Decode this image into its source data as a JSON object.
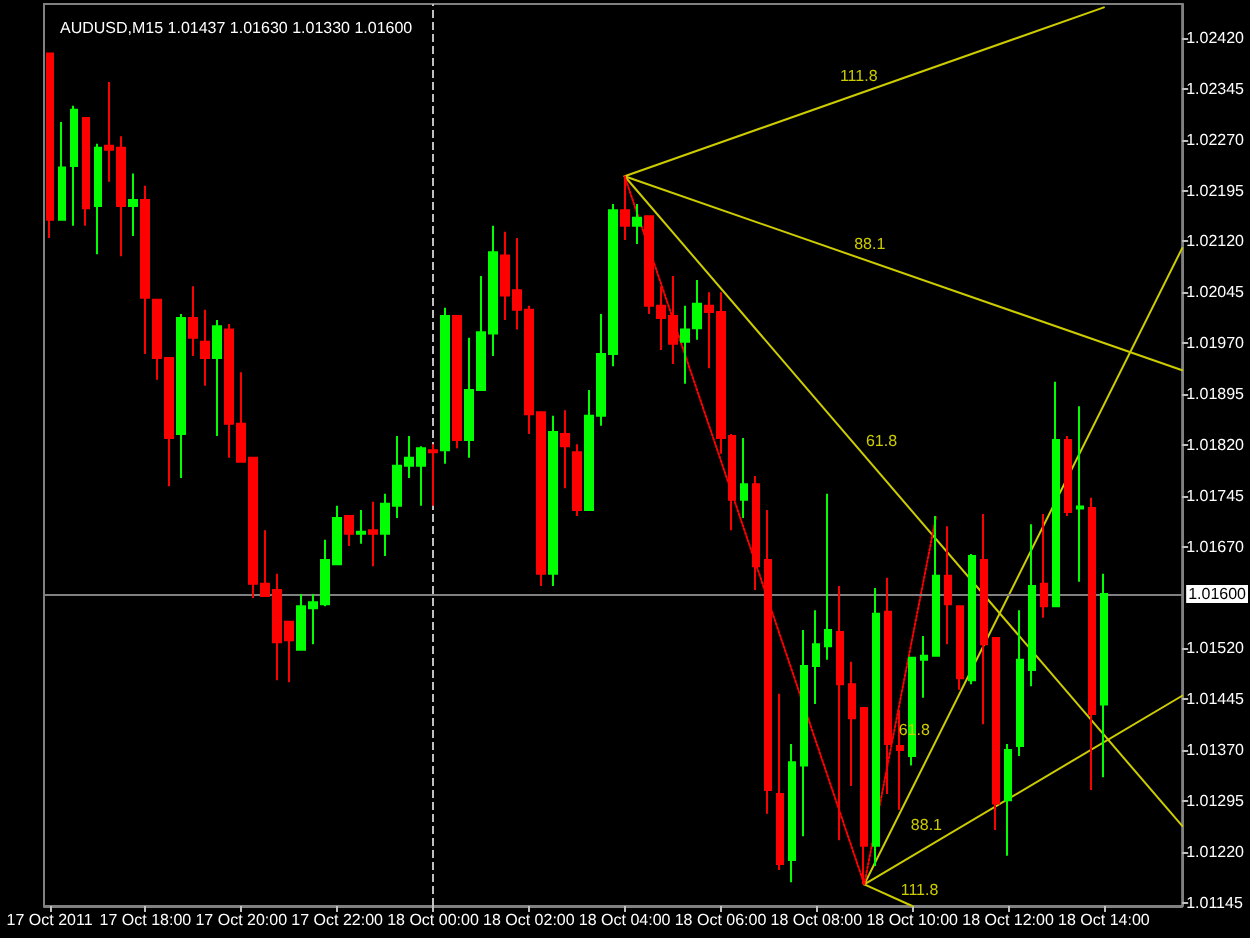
{
  "chart_data": {
    "type": "candlestick",
    "title": "AUDUSD,M15 1.01437 1.01630 1.01330 1.01600",
    "x": [
      "2011-10-17T16:00",
      "2011-10-17T16:15",
      "2011-10-17T16:30",
      "2011-10-17T16:45",
      "2011-10-17T17:00",
      "2011-10-17T17:15",
      "2011-10-17T17:30",
      "2011-10-17T17:45",
      "2011-10-17T18:00",
      "2011-10-17T18:15",
      "2011-10-17T18:30",
      "2011-10-17T18:45",
      "2011-10-17T19:00",
      "2011-10-17T19:15",
      "2011-10-17T19:30",
      "2011-10-17T19:45",
      "2011-10-17T20:00",
      "2011-10-17T20:15",
      "2011-10-17T20:30",
      "2011-10-17T20:45",
      "2011-10-17T21:00",
      "2011-10-17T21:15",
      "2011-10-17T21:30",
      "2011-10-17T21:45",
      "2011-10-17T22:00",
      "2011-10-17T22:15",
      "2011-10-17T22:30",
      "2011-10-17T22:45",
      "2011-10-17T23:00",
      "2011-10-17T23:15",
      "2011-10-17T23:30",
      "2011-10-17T23:45",
      "2011-10-18T00:00",
      "2011-10-18T00:15",
      "2011-10-18T00:30",
      "2011-10-18T00:45",
      "2011-10-18T01:00",
      "2011-10-18T01:15",
      "2011-10-18T01:30",
      "2011-10-18T01:45",
      "2011-10-18T02:00",
      "2011-10-18T02:15",
      "2011-10-18T02:30",
      "2011-10-18T02:45",
      "2011-10-18T03:00",
      "2011-10-18T03:15",
      "2011-10-18T03:30",
      "2011-10-18T03:45",
      "2011-10-18T04:00",
      "2011-10-18T04:15",
      "2011-10-18T04:30",
      "2011-10-18T04:45",
      "2011-10-18T05:00",
      "2011-10-18T05:15",
      "2011-10-18T05:30",
      "2011-10-18T05:45",
      "2011-10-18T06:00",
      "2011-10-18T06:15",
      "2011-10-18T06:30",
      "2011-10-18T06:45",
      "2011-10-18T07:00",
      "2011-10-18T07:15",
      "2011-10-18T07:30",
      "2011-10-18T07:45",
      "2011-10-18T08:00",
      "2011-10-18T08:15",
      "2011-10-18T08:30",
      "2011-10-18T08:45",
      "2011-10-18T09:00",
      "2011-10-18T09:15",
      "2011-10-18T09:30",
      "2011-10-18T09:45",
      "2011-10-18T10:00",
      "2011-10-18T10:15",
      "2011-10-18T10:30",
      "2011-10-18T10:45",
      "2011-10-18T11:00",
      "2011-10-18T11:15",
      "2011-10-18T11:30",
      "2011-10-18T11:45",
      "2011-10-18T12:00",
      "2011-10-18T12:15",
      "2011-10-18T12:30",
      "2011-10-18T12:45",
      "2011-10-18T13:00",
      "2011-10-18T13:15",
      "2011-10-18T13:30",
      "2011-10-18T13:45",
      "2011-10-18T14:00"
    ],
    "ohlc": [
      [
        1.02397,
        1.02397,
        1.02125,
        1.02152
      ],
      [
        1.02152,
        1.02296,
        1.02152,
        1.02229
      ],
      [
        1.02231,
        1.0232,
        1.02143,
        1.02314
      ],
      [
        1.02302,
        1.02302,
        1.02143,
        1.02169
      ],
      [
        1.02172,
        1.02264,
        1.02101,
        1.02258
      ],
      [
        1.02261,
        1.02355,
        1.02208,
        1.02255
      ],
      [
        1.02258,
        1.02275,
        1.02098,
        1.02172
      ],
      [
        1.02172,
        1.0222,
        1.02128,
        1.02181
      ],
      [
        1.02181,
        1.02202,
        1.01954,
        1.02037
      ],
      [
        1.02034,
        1.02034,
        1.01916,
        1.01948
      ],
      [
        1.01948,
        1.01948,
        1.01759,
        1.0183
      ],
      [
        1.01836,
        1.02013,
        1.01771,
        1.02007
      ],
      [
        1.02007,
        1.02054,
        1.01951,
        1.01978
      ],
      [
        1.01972,
        1.02019,
        1.01907,
        1.01948
      ],
      [
        1.01948,
        1.02004,
        1.01833,
        1.01995
      ],
      [
        1.0199,
        1.01998,
        1.01801,
        1.01851
      ],
      [
        1.01851,
        1.01927,
        1.01795,
        1.01795
      ],
      [
        1.01801,
        1.01801,
        1.01594,
        1.01615
      ],
      [
        1.01615,
        1.01694,
        1.01597,
        1.01597
      ],
      [
        1.01606,
        1.0163,
        1.01473,
        1.01529
      ],
      [
        1.01559,
        1.01559,
        1.0147,
        1.01532
      ],
      [
        1.01518,
        1.016,
        1.01518,
        1.01582
      ],
      [
        1.01579,
        1.016,
        1.01526,
        1.01588
      ],
      [
        1.01585,
        1.0168,
        1.01582,
        1.0165
      ],
      [
        1.01644,
        1.0173,
        1.01644,
        1.01712
      ],
      [
        1.01715,
        1.01715,
        1.01671,
        1.01689
      ],
      [
        1.01689,
        1.01724,
        1.01674,
        1.01692
      ],
      [
        1.01694,
        1.01736,
        1.01641,
        1.01689
      ],
      [
        1.01689,
        1.01748,
        1.01656,
        1.01733
      ],
      [
        1.0173,
        1.01833,
        1.01712,
        1.01789
      ],
      [
        1.01789,
        1.01833,
        1.01771,
        1.01801
      ],
      [
        1.01789,
        1.01818,
        1.0173,
        1.01815
      ],
      [
        1.01812,
        1.01821,
        1.0173,
        1.01809
      ],
      [
        1.01812,
        1.02022,
        1.01792,
        1.0201
      ],
      [
        1.0201,
        1.0201,
        1.01815,
        1.01827
      ],
      [
        1.01827,
        1.01978,
        1.01801,
        1.01901
      ],
      [
        1.01901,
        1.02069,
        1.01901,
        1.01986
      ],
      [
        1.01984,
        1.02143,
        1.01951,
        1.02104
      ],
      [
        1.02099,
        1.02134,
        1.02004,
        1.0204
      ],
      [
        1.02048,
        1.02125,
        1.0199,
        1.02019
      ],
      [
        1.02019,
        1.02025,
        1.01836,
        1.01865
      ],
      [
        1.01868,
        1.01868,
        1.01612,
        1.0163
      ],
      [
        1.0163,
        1.01863,
        1.01612,
        1.01839
      ],
      [
        1.01836,
        1.01871,
        1.01756,
        1.01818
      ],
      [
        1.01809,
        1.01821,
        1.01715,
        1.01724
      ],
      [
        1.01724,
        1.01901,
        1.01724,
        1.01863
      ],
      [
        1.01863,
        1.02013,
        1.01848,
        1.01954
      ],
      [
        1.01954,
        1.02175,
        1.01936,
        1.02166
      ],
      [
        1.02166,
        1.02216,
        1.02122,
        1.02143
      ],
      [
        1.02143,
        1.02175,
        1.02116,
        1.02155
      ],
      [
        1.02157,
        1.02157,
        1.02013,
        1.02025
      ],
      [
        1.02025,
        1.02054,
        1.0196,
        1.02007
      ],
      [
        1.0201,
        1.02069,
        1.01939,
        1.01969
      ],
      [
        1.01972,
        1.02025,
        1.0191,
        1.0199
      ],
      [
        1.01992,
        1.02063,
        1.01975,
        1.02028
      ],
      [
        1.02025,
        1.02045,
        1.01933,
        1.02016
      ],
      [
        1.02016,
        1.02045,
        1.01807,
        1.0183
      ],
      [
        1.01833,
        1.01836,
        1.01694,
        1.01739
      ],
      [
        1.01739,
        1.0183,
        1.01712,
        1.01762
      ],
      [
        1.01762,
        1.01774,
        1.01606,
        1.01641
      ],
      [
        1.0165,
        1.01724,
        1.01276,
        1.01311
      ],
      [
        1.01305,
        1.01453,
        1.01193,
        1.01202
      ],
      [
        1.01208,
        1.01379,
        1.01175,
        1.01352
      ],
      [
        1.01347,
        1.01547,
        1.01243,
        1.01494
      ],
      [
        1.01494,
        1.01576,
        1.01438,
        1.01526
      ],
      [
        1.01523,
        1.01748,
        1.01503,
        1.01547
      ],
      [
        1.01544,
        1.01612,
        1.01237,
        1.01467
      ],
      [
        1.01467,
        1.015,
        1.01317,
        1.01417
      ],
      [
        1.01432,
        1.01432,
        1.01172,
        1.01229
      ],
      [
        1.01229,
        1.01609,
        1.01199,
        1.01571
      ],
      [
        1.01574,
        1.01624,
        1.01305,
        1.01379
      ],
      [
        1.01376,
        1.01429,
        1.01282,
        1.0137
      ],
      [
        1.01361,
        1.01506,
        1.01347,
        1.01506
      ],
      [
        1.01503,
        1.01538,
        1.01447,
        1.01509
      ],
      [
        1.01509,
        1.01715,
        1.01509,
        1.01627
      ],
      [
        1.01627,
        1.017,
        1.01526,
        1.01585
      ],
      [
        1.01582,
        1.01582,
        1.01459,
        1.01476
      ],
      [
        1.01473,
        1.01659,
        1.01467,
        1.01656
      ],
      [
        1.0165,
        1.01718,
        1.01408,
        1.01526
      ],
      [
        1.01535,
        1.01535,
        1.01252,
        1.01291
      ],
      [
        1.01296,
        1.01379,
        1.01214,
        1.0137
      ],
      [
        1.01376,
        1.01576,
        1.01361,
        1.01503
      ],
      [
        1.01488,
        1.01703,
        1.01464,
        1.01612
      ],
      [
        1.01615,
        1.01718,
        1.01565,
        1.01582
      ],
      [
        1.01582,
        1.01913,
        1.01582,
        1.01827
      ],
      [
        1.01827,
        1.01833,
        1.01715,
        1.01721
      ],
      [
        1.01726,
        1.01877,
        1.01618,
        1.01729
      ],
      [
        1.01727,
        1.01742,
        1.01311,
        1.01423
      ],
      [
        1.01437,
        1.0163,
        1.0133,
        1.016
      ]
    ],
    "colors": [
      "#ff0000",
      "#00ff00",
      "#00ff00",
      "#ff0000",
      "#00ff00",
      "#ff0000",
      "#ff0000",
      "#00ff00",
      "#ff0000",
      "#ff0000",
      "#ff0000",
      "#00ff00",
      "#ff0000",
      "#ff0000",
      "#00ff00",
      "#ff0000",
      "#ff0000",
      "#ff0000",
      "#ff0000",
      "#ff0000",
      "#ff0000",
      "#00ff00",
      "#00ff00",
      "#00ff00",
      "#00ff00",
      "#ff0000",
      "#00ff00",
      "#ff0000",
      "#00ff00",
      "#00ff00",
      "#00ff00",
      "#00ff00",
      "#ff0000",
      "#00ff00",
      "#ff0000",
      "#00ff00",
      "#00ff00",
      "#00ff00",
      "#ff0000",
      "#ff0000",
      "#ff0000",
      "#ff0000",
      "#00ff00",
      "#ff0000",
      "#ff0000",
      "#00ff00",
      "#00ff00",
      "#00ff00",
      "#ff0000",
      "#00ff00",
      "#ff0000",
      "#ff0000",
      "#ff0000",
      "#00ff00",
      "#00ff00",
      "#ff0000",
      "#ff0000",
      "#ff0000",
      "#00ff00",
      "#ff0000",
      "#ff0000",
      "#ff0000",
      "#00ff00",
      "#00ff00",
      "#00ff00",
      "#00ff00",
      "#ff0000",
      "#ff0000",
      "#ff0000",
      "#00ff00",
      "#ff0000",
      "#ff0000",
      "#00ff00",
      "#00ff00",
      "#00ff00",
      "#ff0000",
      "#ff0000",
      "#00ff00",
      "#ff0000",
      "#ff0000",
      "#00ff00",
      "#00ff00",
      "#00ff00",
      "#ff0000",
      "#00ff00",
      "#ff0000",
      "#00ff00",
      "#ff0000",
      "#00ff00"
    ],
    "series": [
      {
        "type": "line",
        "x": [
          "2011-10-18T04:00",
          "2011-10-18T14:00"
        ],
        "values": [
          1.02216,
          1.02465
        ],
        "color": "#cccc00",
        "line_style": "solid"
      },
      {
        "type": "line",
        "x": [
          "2011-10-18T04:00",
          "2011-10-18T15:38"
        ],
        "values": [
          1.02216,
          1.0193
        ],
        "color": "#cccc00",
        "line_style": "solid"
      },
      {
        "type": "line",
        "x": [
          "2011-10-18T04:00",
          "2011-10-18T15:38"
        ],
        "values": [
          1.02216,
          1.01258
        ],
        "color": "#cccc00",
        "line_style": "solid"
      },
      {
        "type": "line",
        "x": [
          "2011-10-18T04:00",
          "2011-10-18T09:00"
        ],
        "values": [
          1.02216,
          1.01172
        ],
        "color": "#ff0000",
        "line_style": "dotted"
      },
      {
        "type": "line",
        "x": [
          "2011-10-18T09:00",
          "2011-10-18T15:38"
        ],
        "values": [
          1.01172,
          1.0211
        ],
        "color": "#cccc00",
        "line_style": "solid"
      },
      {
        "type": "line",
        "x": [
          "2011-10-18T09:00",
          "2011-10-18T15:38"
        ],
        "values": [
          1.01172,
          1.0145
        ],
        "color": "#cccc00",
        "line_style": "solid"
      },
      {
        "type": "line",
        "x": [
          "2011-10-18T09:00",
          "2011-10-18T10:00"
        ],
        "values": [
          1.01172,
          1.0114
        ],
        "color": "#cccc00",
        "line_style": "solid"
      },
      {
        "type": "line",
        "x": [
          "2011-10-18T09:00",
          "2011-10-18T10:30"
        ],
        "values": [
          1.01172,
          1.01715
        ],
        "color": "#ff0000",
        "line_style": "dotted"
      }
    ],
    "marker": "none",
    "annotations": [
      {
        "text": "111.8",
        "x": "2011-10-18T09:00",
        "y": 1.02341
      },
      {
        "text": "88.1",
        "x": "2011-10-18T09:00",
        "y": 1.02093
      },
      {
        "text": "61.8",
        "x": "2011-10-18T09:00",
        "y": 1.01804
      },
      {
        "text": "61.8",
        "x": "2011-10-18T10:30",
        "y": 1.01384
      },
      {
        "text": "88.1",
        "x": "2011-10-18T10:30",
        "y": 1.01235
      },
      {
        "text": "111.8",
        "x": "2011-10-18T10:00",
        "y": 1.0114
      }
    ],
    "ref_lines": [
      {
        "axis": "y",
        "value": 1.016,
        "label": "1.01600",
        "color": "#808080",
        "line_style": "solid"
      },
      {
        "axis": "x",
        "value": "2011-10-18T00:00",
        "color": "#c0c0c0",
        "line_style": "dashed"
      }
    ],
    "xlim": [
      "2011-10-17T15:53",
      "2011-10-18T15:38"
    ],
    "xticks": [
      {
        "value": "2011-10-17T16:00",
        "label": "17 Oct 2011"
      },
      {
        "value": "2011-10-17T18:00",
        "label": "17 Oct 18:00"
      },
      {
        "value": "2011-10-17T20:00",
        "label": "17 Oct 20:00"
      },
      {
        "value": "2011-10-17T22:00",
        "label": "17 Oct 22:00"
      },
      {
        "value": "2011-10-18T00:00",
        "label": "18 Oct 00:00"
      },
      {
        "value": "2011-10-18T02:00",
        "label": "18 Oct 02:00"
      },
      {
        "value": "2011-10-18T04:00",
        "label": "18 Oct 04:00"
      },
      {
        "value": "2011-10-18T06:00",
        "label": "18 Oct 06:00"
      },
      {
        "value": "2011-10-18T08:00",
        "label": "18 Oct 08:00"
      },
      {
        "value": "2011-10-18T10:00",
        "label": "18 Oct 10:00"
      },
      {
        "value": "2011-10-18T12:00",
        "label": "18 Oct 12:00"
      },
      {
        "value": "2011-10-18T14:00",
        "label": "18 Oct 14:00"
      }
    ],
    "ylim": [
      1.0114,
      1.0247
    ],
    "yticks": [
      1.01145,
      {
        "value": 1.0122,
        "label": "1.01220"
      },
      1.01295,
      {
        "value": 1.0137,
        "label": "1.01370"
      },
      1.01445,
      {
        "value": 1.0152,
        "label": "1.01520"
      },
      {
        "value": 1.0167,
        "label": "1.01670"
      },
      1.01745,
      {
        "value": 1.0182,
        "label": "1.01820"
      },
      1.01895,
      {
        "value": 1.0197,
        "label": "1.01970"
      },
      1.02045,
      {
        "value": 1.0212,
        "label": "1.02120"
      },
      1.02195,
      {
        "value": 1.0227,
        "label": "1.02270"
      },
      1.02345,
      {
        "value": 1.0242,
        "label": "1.02420"
      }
    ]
  }
}
